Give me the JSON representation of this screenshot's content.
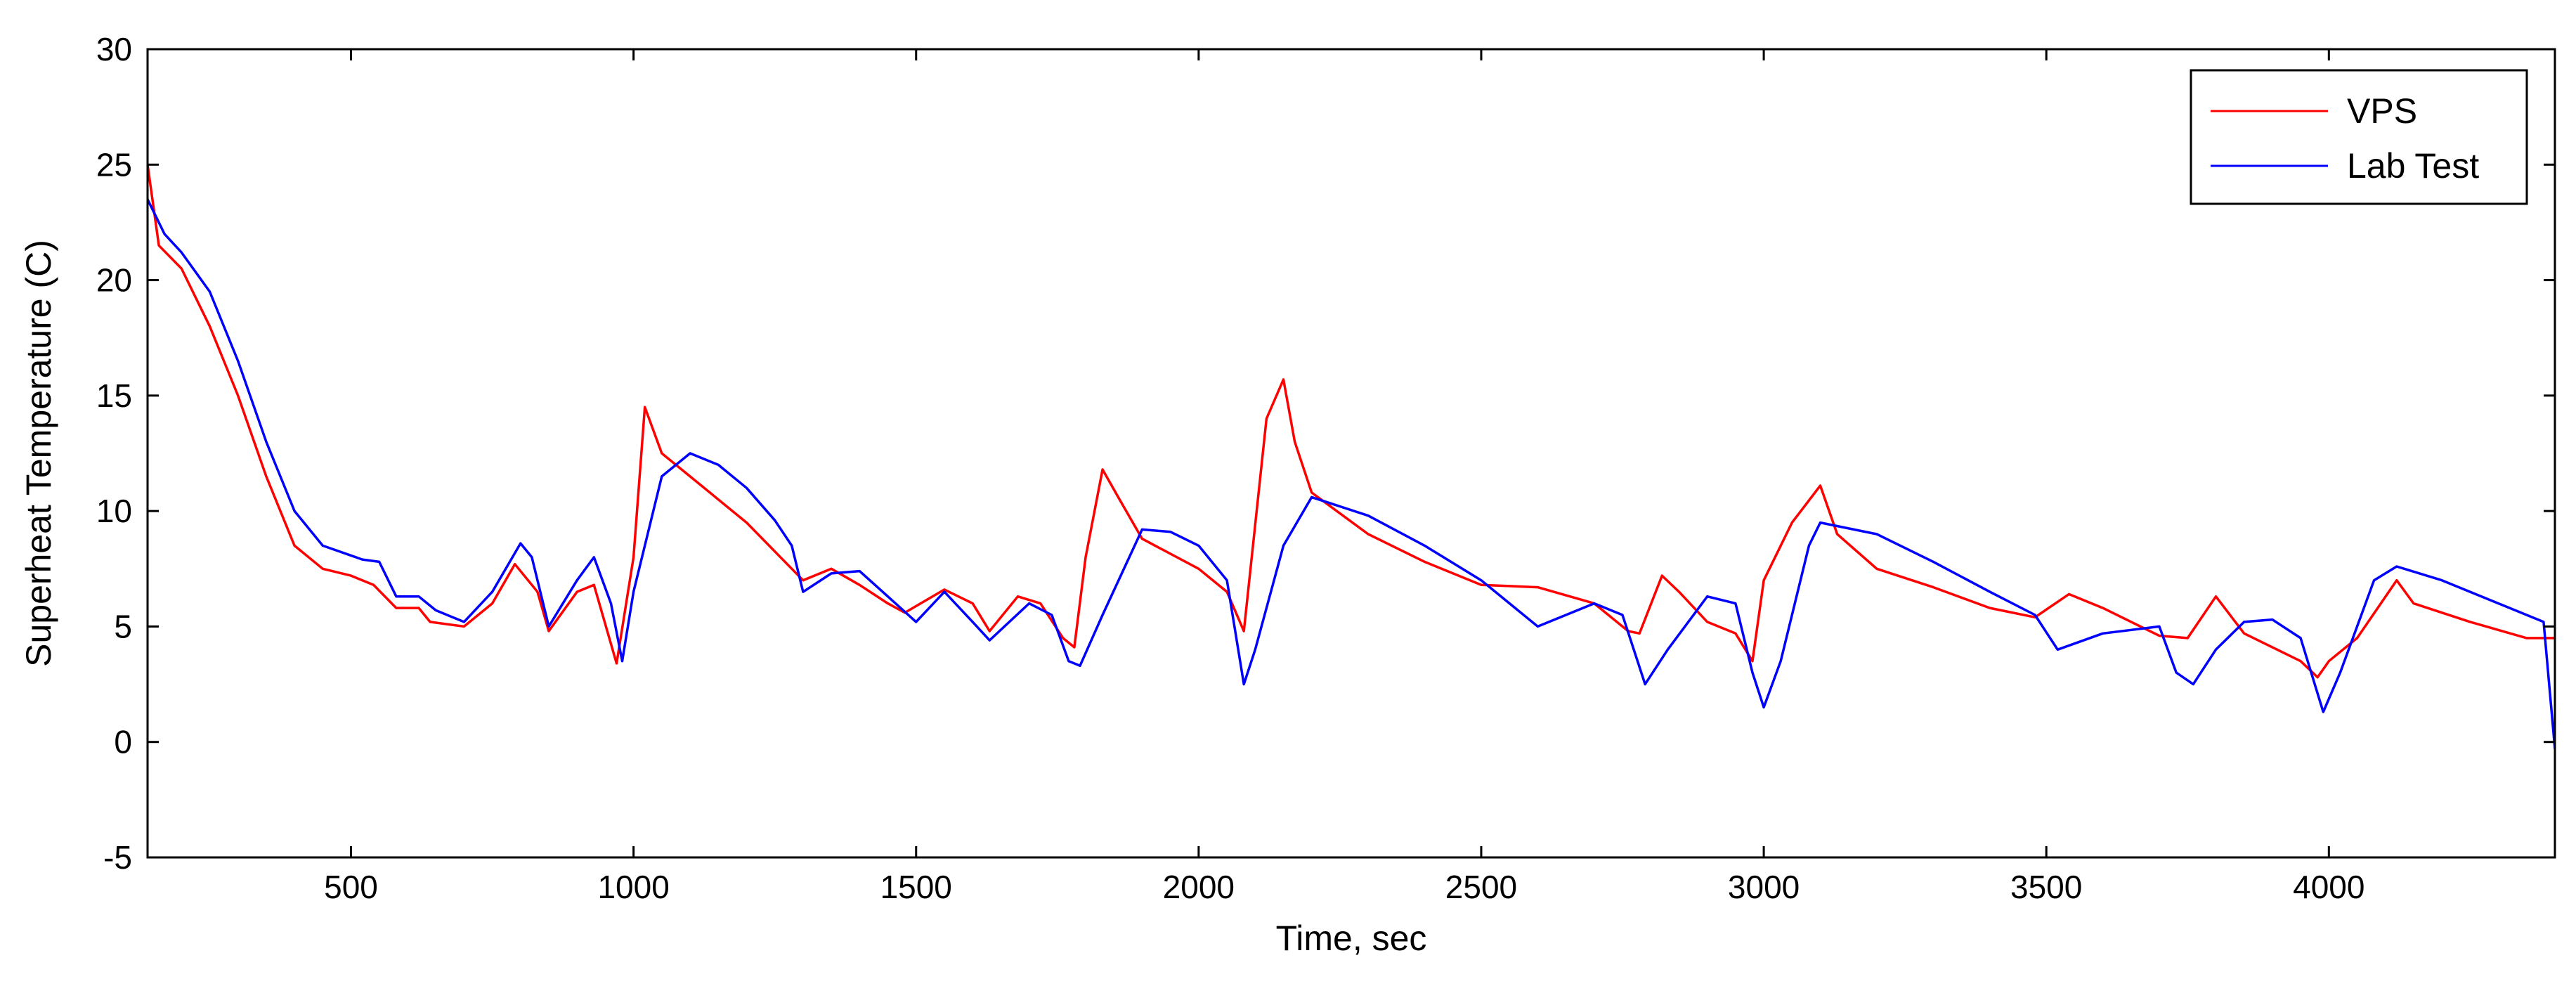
{
  "chart_data": {
    "type": "line",
    "title": "",
    "xlabel": "Time, sec",
    "ylabel": "Superheat Temperature (C)",
    "xlim": [
      140,
      4400
    ],
    "ylim": [
      -5,
      30
    ],
    "xticks": [
      500,
      1000,
      1500,
      2000,
      2500,
      3000,
      3500,
      4000
    ],
    "yticks": [
      -5,
      0,
      5,
      10,
      15,
      20,
      25,
      30
    ],
    "grid": false,
    "legend_position": "top-right",
    "series": [
      {
        "name": "VPS",
        "color": "#ff0000",
        "points": [
          [
            140,
            25
          ],
          [
            160,
            21.5
          ],
          [
            200,
            20.5
          ],
          [
            250,
            18
          ],
          [
            300,
            15
          ],
          [
            350,
            11.5
          ],
          [
            400,
            8.5
          ],
          [
            450,
            7.5
          ],
          [
            500,
            7.2
          ],
          [
            540,
            6.8
          ],
          [
            580,
            5.8
          ],
          [
            620,
            5.8
          ],
          [
            640,
            5.2
          ],
          [
            700,
            5
          ],
          [
            750,
            6
          ],
          [
            790,
            7.7
          ],
          [
            830,
            6.5
          ],
          [
            850,
            4.8
          ],
          [
            900,
            6.5
          ],
          [
            930,
            6.8
          ],
          [
            970,
            3.4
          ],
          [
            1000,
            8
          ],
          [
            1020,
            14.5
          ],
          [
            1050,
            12.5
          ],
          [
            1100,
            11.5
          ],
          [
            1200,
            9.5
          ],
          [
            1280,
            7.5
          ],
          [
            1300,
            7
          ],
          [
            1350,
            7.5
          ],
          [
            1400,
            6.8
          ],
          [
            1450,
            6
          ],
          [
            1480,
            5.6
          ],
          [
            1550,
            6.6
          ],
          [
            1600,
            6
          ],
          [
            1630,
            4.8
          ],
          [
            1680,
            6.3
          ],
          [
            1720,
            6
          ],
          [
            1760,
            4.5
          ],
          [
            1780,
            4.1
          ],
          [
            1800,
            8
          ],
          [
            1830,
            11.8
          ],
          [
            1860,
            10.5
          ],
          [
            1900,
            8.8
          ],
          [
            2000,
            7.5
          ],
          [
            2050,
            6.5
          ],
          [
            2080,
            4.8
          ],
          [
            2120,
            14
          ],
          [
            2150,
            15.7
          ],
          [
            2170,
            13
          ],
          [
            2200,
            10.8
          ],
          [
            2300,
            9
          ],
          [
            2400,
            7.8
          ],
          [
            2500,
            6.8
          ],
          [
            2600,
            6.7
          ],
          [
            2700,
            6
          ],
          [
            2760,
            4.8
          ],
          [
            2780,
            4.7
          ],
          [
            2820,
            7.2
          ],
          [
            2850,
            6.5
          ],
          [
            2900,
            5.2
          ],
          [
            2950,
            4.7
          ],
          [
            2980,
            3.5
          ],
          [
            3000,
            7
          ],
          [
            3050,
            9.5
          ],
          [
            3100,
            11.1
          ],
          [
            3130,
            9
          ],
          [
            3200,
            7.5
          ],
          [
            3300,
            6.7
          ],
          [
            3400,
            5.8
          ],
          [
            3480,
            5.4
          ],
          [
            3540,
            6.4
          ],
          [
            3600,
            5.8
          ],
          [
            3700,
            4.6
          ],
          [
            3750,
            4.5
          ],
          [
            3800,
            6.3
          ],
          [
            3850,
            4.7
          ],
          [
            3950,
            3.5
          ],
          [
            3980,
            2.8
          ],
          [
            4000,
            3.5
          ],
          [
            4050,
            4.5
          ],
          [
            4120,
            7
          ],
          [
            4150,
            6
          ],
          [
            4250,
            5.2
          ],
          [
            4350,
            4.5
          ],
          [
            4400,
            4.5
          ]
        ]
      },
      {
        "name": "Lab Test",
        "color": "#0000ff",
        "points": [
          [
            140,
            23.5
          ],
          [
            170,
            22
          ],
          [
            200,
            21.2
          ],
          [
            250,
            19.5
          ],
          [
            300,
            16.5
          ],
          [
            350,
            13
          ],
          [
            400,
            10
          ],
          [
            450,
            8.5
          ],
          [
            520,
            7.9
          ],
          [
            550,
            7.8
          ],
          [
            580,
            6.3
          ],
          [
            620,
            6.3
          ],
          [
            650,
            5.7
          ],
          [
            700,
            5.2
          ],
          [
            750,
            6.5
          ],
          [
            800,
            8.6
          ],
          [
            820,
            8
          ],
          [
            850,
            5
          ],
          [
            900,
            7
          ],
          [
            930,
            8
          ],
          [
            960,
            6
          ],
          [
            980,
            3.5
          ],
          [
            1000,
            6.5
          ],
          [
            1050,
            11.5
          ],
          [
            1100,
            12.5
          ],
          [
            1150,
            12
          ],
          [
            1200,
            11
          ],
          [
            1250,
            9.6
          ],
          [
            1280,
            8.5
          ],
          [
            1300,
            6.5
          ],
          [
            1350,
            7.3
          ],
          [
            1400,
            7.4
          ],
          [
            1450,
            6.3
          ],
          [
            1500,
            5.2
          ],
          [
            1550,
            6.5
          ],
          [
            1600,
            5.2
          ],
          [
            1630,
            4.4
          ],
          [
            1700,
            6
          ],
          [
            1740,
            5.5
          ],
          [
            1770,
            3.5
          ],
          [
            1790,
            3.3
          ],
          [
            1830,
            5.5
          ],
          [
            1900,
            9.2
          ],
          [
            1950,
            9.1
          ],
          [
            2000,
            8.5
          ],
          [
            2050,
            7
          ],
          [
            2080,
            2.5
          ],
          [
            2100,
            4
          ],
          [
            2150,
            8.5
          ],
          [
            2200,
            10.6
          ],
          [
            2300,
            9.8
          ],
          [
            2400,
            8.5
          ],
          [
            2500,
            7
          ],
          [
            2600,
            5
          ],
          [
            2650,
            5.5
          ],
          [
            2700,
            6
          ],
          [
            2750,
            5.5
          ],
          [
            2790,
            2.5
          ],
          [
            2830,
            4
          ],
          [
            2900,
            6.3
          ],
          [
            2950,
            6
          ],
          [
            2980,
            3
          ],
          [
            3000,
            1.5
          ],
          [
            3030,
            3.5
          ],
          [
            3080,
            8.5
          ],
          [
            3100,
            9.5
          ],
          [
            3200,
            9
          ],
          [
            3300,
            7.8
          ],
          [
            3400,
            6.5
          ],
          [
            3480,
            5.5
          ],
          [
            3520,
            4
          ],
          [
            3600,
            4.7
          ],
          [
            3700,
            5
          ],
          [
            3730,
            3
          ],
          [
            3760,
            2.5
          ],
          [
            3800,
            4
          ],
          [
            3850,
            5.2
          ],
          [
            3900,
            5.3
          ],
          [
            3950,
            4.5
          ],
          [
            3990,
            1.3
          ],
          [
            4020,
            3
          ],
          [
            4080,
            7
          ],
          [
            4120,
            7.6
          ],
          [
            4200,
            7
          ],
          [
            4300,
            6
          ],
          [
            4380,
            5.2
          ],
          [
            4400,
            -0.3
          ]
        ]
      }
    ]
  }
}
